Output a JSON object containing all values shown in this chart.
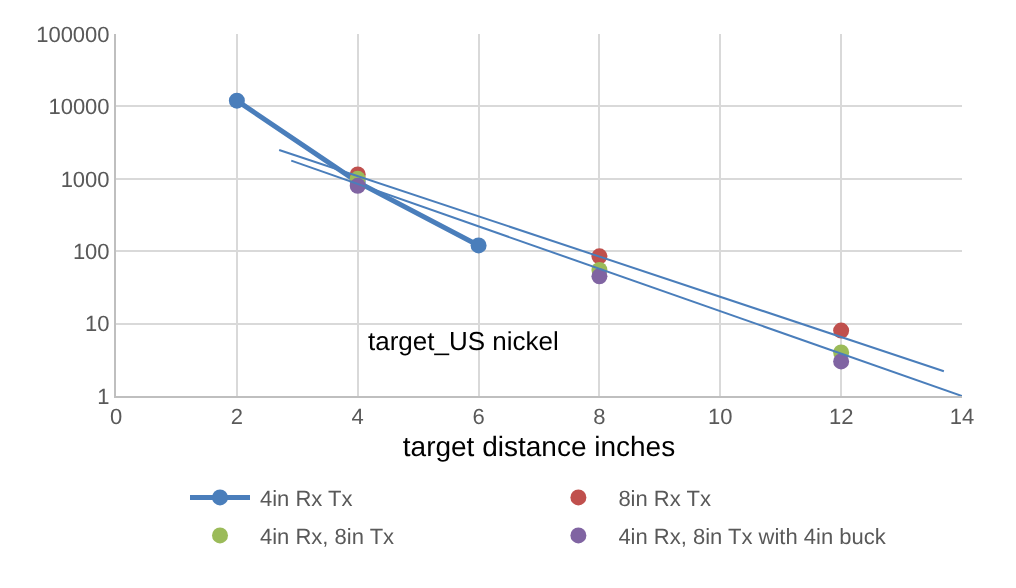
{
  "chart_data": {
    "type": "scatter",
    "title": "target_US nickel",
    "xlabel": "target distance inches",
    "xlim": [
      0,
      14
    ],
    "xticks": [
      0,
      2,
      4,
      6,
      8,
      10,
      12,
      14
    ],
    "ylim": [
      1,
      100000
    ],
    "yticks": [
      1,
      10,
      100,
      1000,
      10000,
      100000
    ],
    "log": "y",
    "grid": true,
    "legend": "bottom",
    "marker": "circle",
    "series": [
      {
        "name": "4in Rx Tx",
        "type": "line",
        "color": "#4a7ebb",
        "x": [
          2,
          4,
          6
        ],
        "values": [
          12000,
          900,
          120
        ]
      },
      {
        "name": "8in Rx Tx",
        "color": "#c0504d",
        "x": [
          4,
          8,
          12
        ],
        "values": [
          1150,
          85,
          8
        ]
      },
      {
        "name": "4in Rx, 8in Tx",
        "color": "#9bbb59",
        "x": [
          4,
          8,
          12
        ],
        "values": [
          1000,
          55,
          4
        ]
      },
      {
        "name": "4in Rx, 8in Tx with 4in buck",
        "color": "#8064a2",
        "x": [
          4,
          8,
          12
        ],
        "values": [
          800,
          45,
          3
        ]
      },
      {
        "type": "line",
        "color": "#4a7ebb",
        "marker": "none",
        "x": [
          2.7,
          13.7
        ],
        "values": [
          2500,
          2.2
        ]
      },
      {
        "type": "line",
        "color": "#4a7ebb",
        "marker": "none",
        "x": [
          2.9,
          14
        ],
        "values": [
          1780,
          1.0
        ]
      }
    ]
  }
}
